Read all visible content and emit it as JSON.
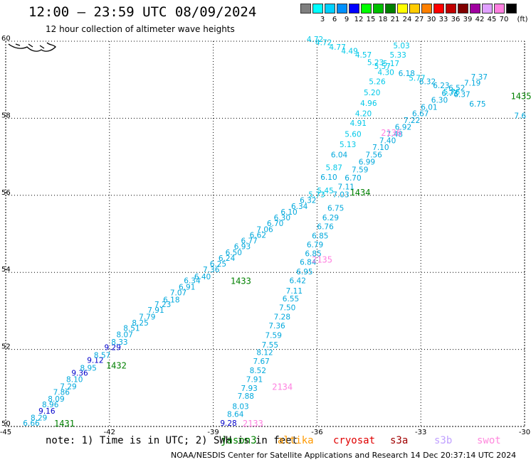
{
  "header": {
    "title": "12:00 – 23:59 UTC 08/09/2024",
    "subtitle": "12 hour collection of altimeter wave heights"
  },
  "legend": {
    "unit": "(ft)",
    "bins": [
      {
        "label": "",
        "color": "#7f7f7f"
      },
      {
        "label": "3",
        "color": "#00ffff"
      },
      {
        "label": "6",
        "color": "#00d0ff"
      },
      {
        "label": "9",
        "color": "#0090ff"
      },
      {
        "label": "12",
        "color": "#0000ff"
      },
      {
        "label": "15",
        "color": "#00ff00"
      },
      {
        "label": "18",
        "color": "#00c000"
      },
      {
        "label": "21",
        "color": "#008000"
      },
      {
        "label": "24",
        "color": "#ffff00"
      },
      {
        "label": "27",
        "color": "#ffcc00"
      },
      {
        "label": "30",
        "color": "#ff8000"
      },
      {
        "label": "33",
        "color": "#ff0000"
      },
      {
        "label": "36",
        "color": "#c00000"
      },
      {
        "label": "39",
        "color": "#800000"
      },
      {
        "label": "42",
        "color": "#a000a0"
      },
      {
        "label": "45",
        "color": "#e0a0ff"
      },
      {
        "label": "70",
        "color": "#ff80e0"
      },
      {
        "label": "",
        "color": "#000000"
      }
    ]
  },
  "map": {
    "lon_labels": [
      "-45",
      "-42",
      "-39",
      "-36",
      "-33",
      "-30"
    ],
    "lat_labels": [
      "60",
      "58",
      "56",
      "54",
      "52",
      "50"
    ],
    "lon_range": [
      -45,
      -30
    ],
    "lat_range": [
      50,
      60
    ],
    "grid": "dotted",
    "track_colors": {
      "low": "#00c8e8",
      "mid": "#00a8dc",
      "high": "#0000cc",
      "time": "#008000",
      "time_alt": "#ff80e0"
    },
    "tracks": [
      {
        "name": "track-a",
        "points": [
          {
            "v": "6.66",
            "lon": -44.5,
            "lat": 50.02,
            "c": "mid"
          },
          {
            "v": "8.29",
            "lon": -44.28,
            "lat": 50.16,
            "c": "mid"
          },
          {
            "v": "9.16",
            "lon": -44.05,
            "lat": 50.33,
            "c": "high"
          },
          {
            "v": "8.96",
            "lon": -43.95,
            "lat": 50.5,
            "c": "mid"
          },
          {
            "v": "8.09",
            "lon": -43.78,
            "lat": 50.65,
            "c": "mid"
          },
          {
            "v": "7.86",
            "lon": -43.63,
            "lat": 50.82,
            "c": "mid"
          },
          {
            "v": "7.29",
            "lon": -43.43,
            "lat": 50.97,
            "c": "mid"
          },
          {
            "v": "8.10",
            "lon": -43.25,
            "lat": 51.15,
            "c": "mid"
          },
          {
            "v": "9.36",
            "lon": -43.1,
            "lat": 51.32,
            "c": "high"
          },
          {
            "v": "8.95",
            "lon": -42.85,
            "lat": 51.45,
            "c": "mid"
          },
          {
            "v": "9.12",
            "lon": -42.65,
            "lat": 51.65,
            "c": "high"
          },
          {
            "v": "8.57",
            "lon": -42.45,
            "lat": 51.78,
            "c": "mid"
          },
          {
            "v": "9.29",
            "lon": -42.15,
            "lat": 51.98,
            "c": "high"
          },
          {
            "v": "8.33",
            "lon": -41.95,
            "lat": 52.12,
            "c": "mid"
          },
          {
            "v": "8.07",
            "lon": -41.8,
            "lat": 52.32,
            "c": "mid"
          },
          {
            "v": "8.51",
            "lon": -41.6,
            "lat": 52.48,
            "c": "mid"
          },
          {
            "v": "8.25",
            "lon": -41.35,
            "lat": 52.62,
            "c": "mid"
          },
          {
            "v": "7.79",
            "lon": -41.15,
            "lat": 52.78,
            "c": "mid"
          },
          {
            "v": "7.91",
            "lon": -40.9,
            "lat": 52.95,
            "c": "mid"
          },
          {
            "v": "7.23",
            "lon": -40.7,
            "lat": 53.1,
            "c": "mid"
          },
          {
            "v": "6.18",
            "lon": -40.45,
            "lat": 53.22,
            "c": "mid"
          },
          {
            "v": "7.07",
            "lon": -40.25,
            "lat": 53.4,
            "c": "mid"
          },
          {
            "v": "6.91",
            "lon": -40.0,
            "lat": 53.55,
            "c": "mid"
          },
          {
            "v": "6.34",
            "lon": -39.85,
            "lat": 53.72,
            "c": "mid"
          },
          {
            "v": "6.40",
            "lon": -39.55,
            "lat": 53.82,
            "c": "mid"
          },
          {
            "v": "7.36",
            "lon": -39.3,
            "lat": 54.0,
            "c": "mid"
          },
          {
            "v": "6.25",
            "lon": -39.1,
            "lat": 54.15,
            "c": "mid"
          },
          {
            "v": "6.24",
            "lon": -38.85,
            "lat": 54.3,
            "c": "mid"
          },
          {
            "v": "6.50",
            "lon": -38.65,
            "lat": 54.45,
            "c": "mid"
          },
          {
            "v": "6.93",
            "lon": -38.4,
            "lat": 54.6,
            "c": "mid"
          },
          {
            "v": "6.77",
            "lon": -38.2,
            "lat": 54.75,
            "c": "mid"
          },
          {
            "v": "6.62",
            "lon": -37.95,
            "lat": 54.9,
            "c": "mid"
          },
          {
            "v": "7.06",
            "lon": -37.75,
            "lat": 55.05,
            "c": "mid"
          },
          {
            "v": "6.70",
            "lon": -37.45,
            "lat": 55.2,
            "c": "mid"
          },
          {
            "v": "6.30",
            "lon": -37.25,
            "lat": 55.35,
            "c": "mid"
          },
          {
            "v": "6.10",
            "lon": -37.05,
            "lat": 55.5,
            "c": "mid"
          },
          {
            "v": "6.34",
            "lon": -36.75,
            "lat": 55.65,
            "c": "mid"
          },
          {
            "v": "6.32",
            "lon": -36.5,
            "lat": 55.8,
            "c": "mid"
          },
          {
            "v": "5.73",
            "lon": -36.25,
            "lat": 55.95,
            "c": "low"
          },
          {
            "v": "5.45",
            "lon": -36.0,
            "lat": 56.05,
            "c": "low"
          },
          {
            "v": "6.10",
            "lon": -35.9,
            "lat": 56.4,
            "c": "mid"
          },
          {
            "v": "5.87",
            "lon": -35.75,
            "lat": 56.65,
            "c": "low"
          },
          {
            "v": "6.04",
            "lon": -35.6,
            "lat": 56.98,
            "c": "mid"
          },
          {
            "v": "5.13",
            "lon": -35.35,
            "lat": 57.25,
            "c": "low"
          },
          {
            "v": "5.60",
            "lon": -35.2,
            "lat": 57.52,
            "c": "low"
          },
          {
            "v": "4.91",
            "lon": -35.05,
            "lat": 57.8,
            "c": "low"
          },
          {
            "v": "4.20",
            "lon": -34.9,
            "lat": 58.05,
            "c": "low"
          },
          {
            "v": "4.96",
            "lon": -34.75,
            "lat": 58.32,
            "c": "low"
          },
          {
            "v": "5.20",
            "lon": -34.65,
            "lat": 58.6,
            "c": "low"
          },
          {
            "v": "5.26",
            "lon": -34.5,
            "lat": 58.88,
            "c": "low"
          },
          {
            "v": "4.30",
            "lon": -34.25,
            "lat": 59.12,
            "c": "low"
          },
          {
            "v": "5.57",
            "lon": -34.35,
            "lat": 59.28,
            "c": "low"
          },
          {
            "v": "5.23",
            "lon": -34.55,
            "lat": 59.38,
            "c": "low"
          },
          {
            "v": "4.57",
            "lon": -34.9,
            "lat": 59.58,
            "c": "low"
          },
          {
            "v": "4.49",
            "lon": -35.3,
            "lat": 59.68,
            "c": "low"
          },
          {
            "v": "4.77",
            "lon": -35.65,
            "lat": 59.78,
            "c": "low"
          },
          {
            "v": "4.72",
            "lon": -36.05,
            "lat": 59.9,
            "c": "low"
          },
          {
            "v": "4.72",
            "lon": -36.3,
            "lat": 59.98,
            "c": "low"
          }
        ]
      },
      {
        "name": "track-b",
        "points": [
          {
            "v": "9.28",
            "lon": -38.8,
            "lat": 50.02,
            "c": "high"
          },
          {
            "v": "8.64",
            "lon": -38.6,
            "lat": 50.25,
            "c": "mid"
          },
          {
            "v": "8.03",
            "lon": -38.45,
            "lat": 50.45,
            "c": "mid"
          },
          {
            "v": "7.88",
            "lon": -38.3,
            "lat": 50.72,
            "c": "mid"
          },
          {
            "v": "7.93",
            "lon": -38.2,
            "lat": 50.92,
            "c": "mid"
          },
          {
            "v": "7.91",
            "lon": -38.05,
            "lat": 51.15,
            "c": "mid"
          },
          {
            "v": "8.52",
            "lon": -37.95,
            "lat": 51.38,
            "c": "mid"
          },
          {
            "v": "7.67",
            "lon": -37.85,
            "lat": 51.62,
            "c": "mid"
          },
          {
            "v": "8.12",
            "lon": -37.75,
            "lat": 51.85,
            "c": "mid"
          },
          {
            "v": "7.55",
            "lon": -37.6,
            "lat": 52.05,
            "c": "mid"
          },
          {
            "v": "7.59",
            "lon": -37.5,
            "lat": 52.3,
            "c": "mid"
          },
          {
            "v": "7.36",
            "lon": -37.4,
            "lat": 52.55,
            "c": "mid"
          },
          {
            "v": "7.28",
            "lon": -37.25,
            "lat": 52.78,
            "c": "mid"
          },
          {
            "v": "7.50",
            "lon": -37.1,
            "lat": 53.02,
            "c": "mid"
          },
          {
            "v": "6.55",
            "lon": -37.0,
            "lat": 53.25,
            "c": "mid"
          },
          {
            "v": "7.11",
            "lon": -36.9,
            "lat": 53.45,
            "c": "mid"
          },
          {
            "v": "6.42",
            "lon": -36.8,
            "lat": 53.72,
            "c": "mid"
          },
          {
            "v": "6.95",
            "lon": -36.6,
            "lat": 53.95,
            "c": "mid"
          },
          {
            "v": "6.84",
            "lon": -36.5,
            "lat": 54.2,
            "c": "mid"
          },
          {
            "v": "6.85",
            "lon": -36.35,
            "lat": 54.42,
            "c": "mid"
          },
          {
            "v": "6.79",
            "lon": -36.3,
            "lat": 54.65,
            "c": "mid"
          },
          {
            "v": "6.85",
            "lon": -36.15,
            "lat": 54.88,
            "c": "mid"
          },
          {
            "v": "6.76",
            "lon": -36.0,
            "lat": 55.12,
            "c": "mid"
          },
          {
            "v": "6.29",
            "lon": -35.85,
            "lat": 55.35,
            "c": "mid"
          },
          {
            "v": "6.75",
            "lon": -35.7,
            "lat": 55.6,
            "c": "mid"
          },
          {
            "v": "7.03",
            "lon": -35.55,
            "lat": 55.95,
            "c": "mid"
          },
          {
            "v": "7.11",
            "lon": -35.4,
            "lat": 56.15,
            "c": "mid"
          },
          {
            "v": "6.70",
            "lon": -35.2,
            "lat": 56.38,
            "c": "mid"
          },
          {
            "v": "7.59",
            "lon": -35.0,
            "lat": 56.6,
            "c": "mid"
          },
          {
            "v": "6.99",
            "lon": -34.8,
            "lat": 56.8,
            "c": "mid"
          },
          {
            "v": "7.56",
            "lon": -34.6,
            "lat": 56.98,
            "c": "mid"
          },
          {
            "v": "7.10",
            "lon": -34.4,
            "lat": 57.18,
            "c": "mid"
          },
          {
            "v": "7.40",
            "lon": -34.2,
            "lat": 57.35,
            "c": "mid"
          },
          {
            "v": "7.48",
            "lon": -34.0,
            "lat": 57.52,
            "c": "mid"
          },
          {
            "v": "6.92",
            "lon": -33.75,
            "lat": 57.7,
            "c": "mid"
          },
          {
            "v": "7.22",
            "lon": -33.5,
            "lat": 57.88,
            "c": "mid"
          },
          {
            "v": "6.67",
            "lon": -33.25,
            "lat": 58.05,
            "c": "mid"
          },
          {
            "v": "6.01",
            "lon": -33.0,
            "lat": 58.22,
            "c": "mid"
          },
          {
            "v": "6.30",
            "lon": -32.7,
            "lat": 58.4,
            "c": "mid"
          },
          {
            "v": "6.73",
            "lon": -32.4,
            "lat": 58.58,
            "c": "mid"
          },
          {
            "v": "6.52",
            "lon": -32.2,
            "lat": 58.72,
            "c": "mid"
          },
          {
            "v": "7.19",
            "lon": -31.75,
            "lat": 58.85,
            "c": "mid"
          },
          {
            "v": "7.37",
            "lon": -31.55,
            "lat": 59.0,
            "c": "mid"
          }
        ]
      },
      {
        "name": "track-c",
        "points": [
          {
            "v": "5.03",
            "lon": -33.8,
            "lat": 59.82,
            "c": "low"
          },
          {
            "v": "5.33",
            "lon": -33.9,
            "lat": 59.58,
            "c": "low"
          },
          {
            "v": "5.17",
            "lon": -34.1,
            "lat": 59.35,
            "c": "low"
          },
          {
            "v": "6.18",
            "lon": -33.65,
            "lat": 59.1,
            "c": "mid"
          },
          {
            "v": "5.77",
            "lon": -33.35,
            "lat": 58.98,
            "c": "low"
          },
          {
            "v": "6.32",
            "lon": -33.05,
            "lat": 58.88,
            "c": "mid"
          },
          {
            "v": "6.23",
            "lon": -32.65,
            "lat": 58.78,
            "c": "mid"
          },
          {
            "v": "5.76",
            "lon": -32.35,
            "lat": 58.62,
            "c": "low"
          },
          {
            "v": "6.37",
            "lon": -32.05,
            "lat": 58.55,
            "c": "mid"
          },
          {
            "v": "6.75",
            "lon": -31.6,
            "lat": 58.3,
            "c": "mid"
          },
          {
            "v": "7.6",
            "lon": -30.3,
            "lat": 58.0,
            "c": "mid"
          }
        ]
      }
    ],
    "times": [
      {
        "label": "1431",
        "lon": -43.6,
        "lat": 50.0,
        "c": "time"
      },
      {
        "label": "1432",
        "lon": -42.1,
        "lat": 51.5,
        "c": "time"
      },
      {
        "label": "1433",
        "lon": -38.5,
        "lat": 53.7,
        "c": "time"
      },
      {
        "label": "1434",
        "lon": -35.05,
        "lat": 56.0,
        "c": "time"
      },
      {
        "label": "1435",
        "lon": -30.4,
        "lat": 58.5,
        "c": "time"
      },
      {
        "label": "2133",
        "lon": -38.15,
        "lat": 50.0,
        "c": "time_alt"
      },
      {
        "label": "2134",
        "lon": -37.3,
        "lat": 50.95,
        "c": "time_alt"
      },
      {
        "label": "2135",
        "lon": -36.15,
        "lat": 54.25,
        "c": "time_alt"
      },
      {
        "label": "2136",
        "lon": -34.15,
        "lat": 57.55,
        "c": "time_alt"
      }
    ]
  },
  "note": "note: 1) Time is in UTC; 2) SWH is in feet",
  "missions": [
    {
      "label": "jason3",
      "color": "#008000"
    },
    {
      "label": "altika",
      "color": "#ff9900"
    },
    {
      "label": "cryosat",
      "color": "#e00000"
    },
    {
      "label": "s3a",
      "color": "#a00000"
    },
    {
      "label": "s3b",
      "color": "#c0a0ff"
    },
    {
      "label": "swot",
      "color": "#ff88dd"
    }
  ],
  "footer": "NOAA/NESDIS Center for Satellite Applications and Research    14 Dec 20:37:14 UTC 2024"
}
